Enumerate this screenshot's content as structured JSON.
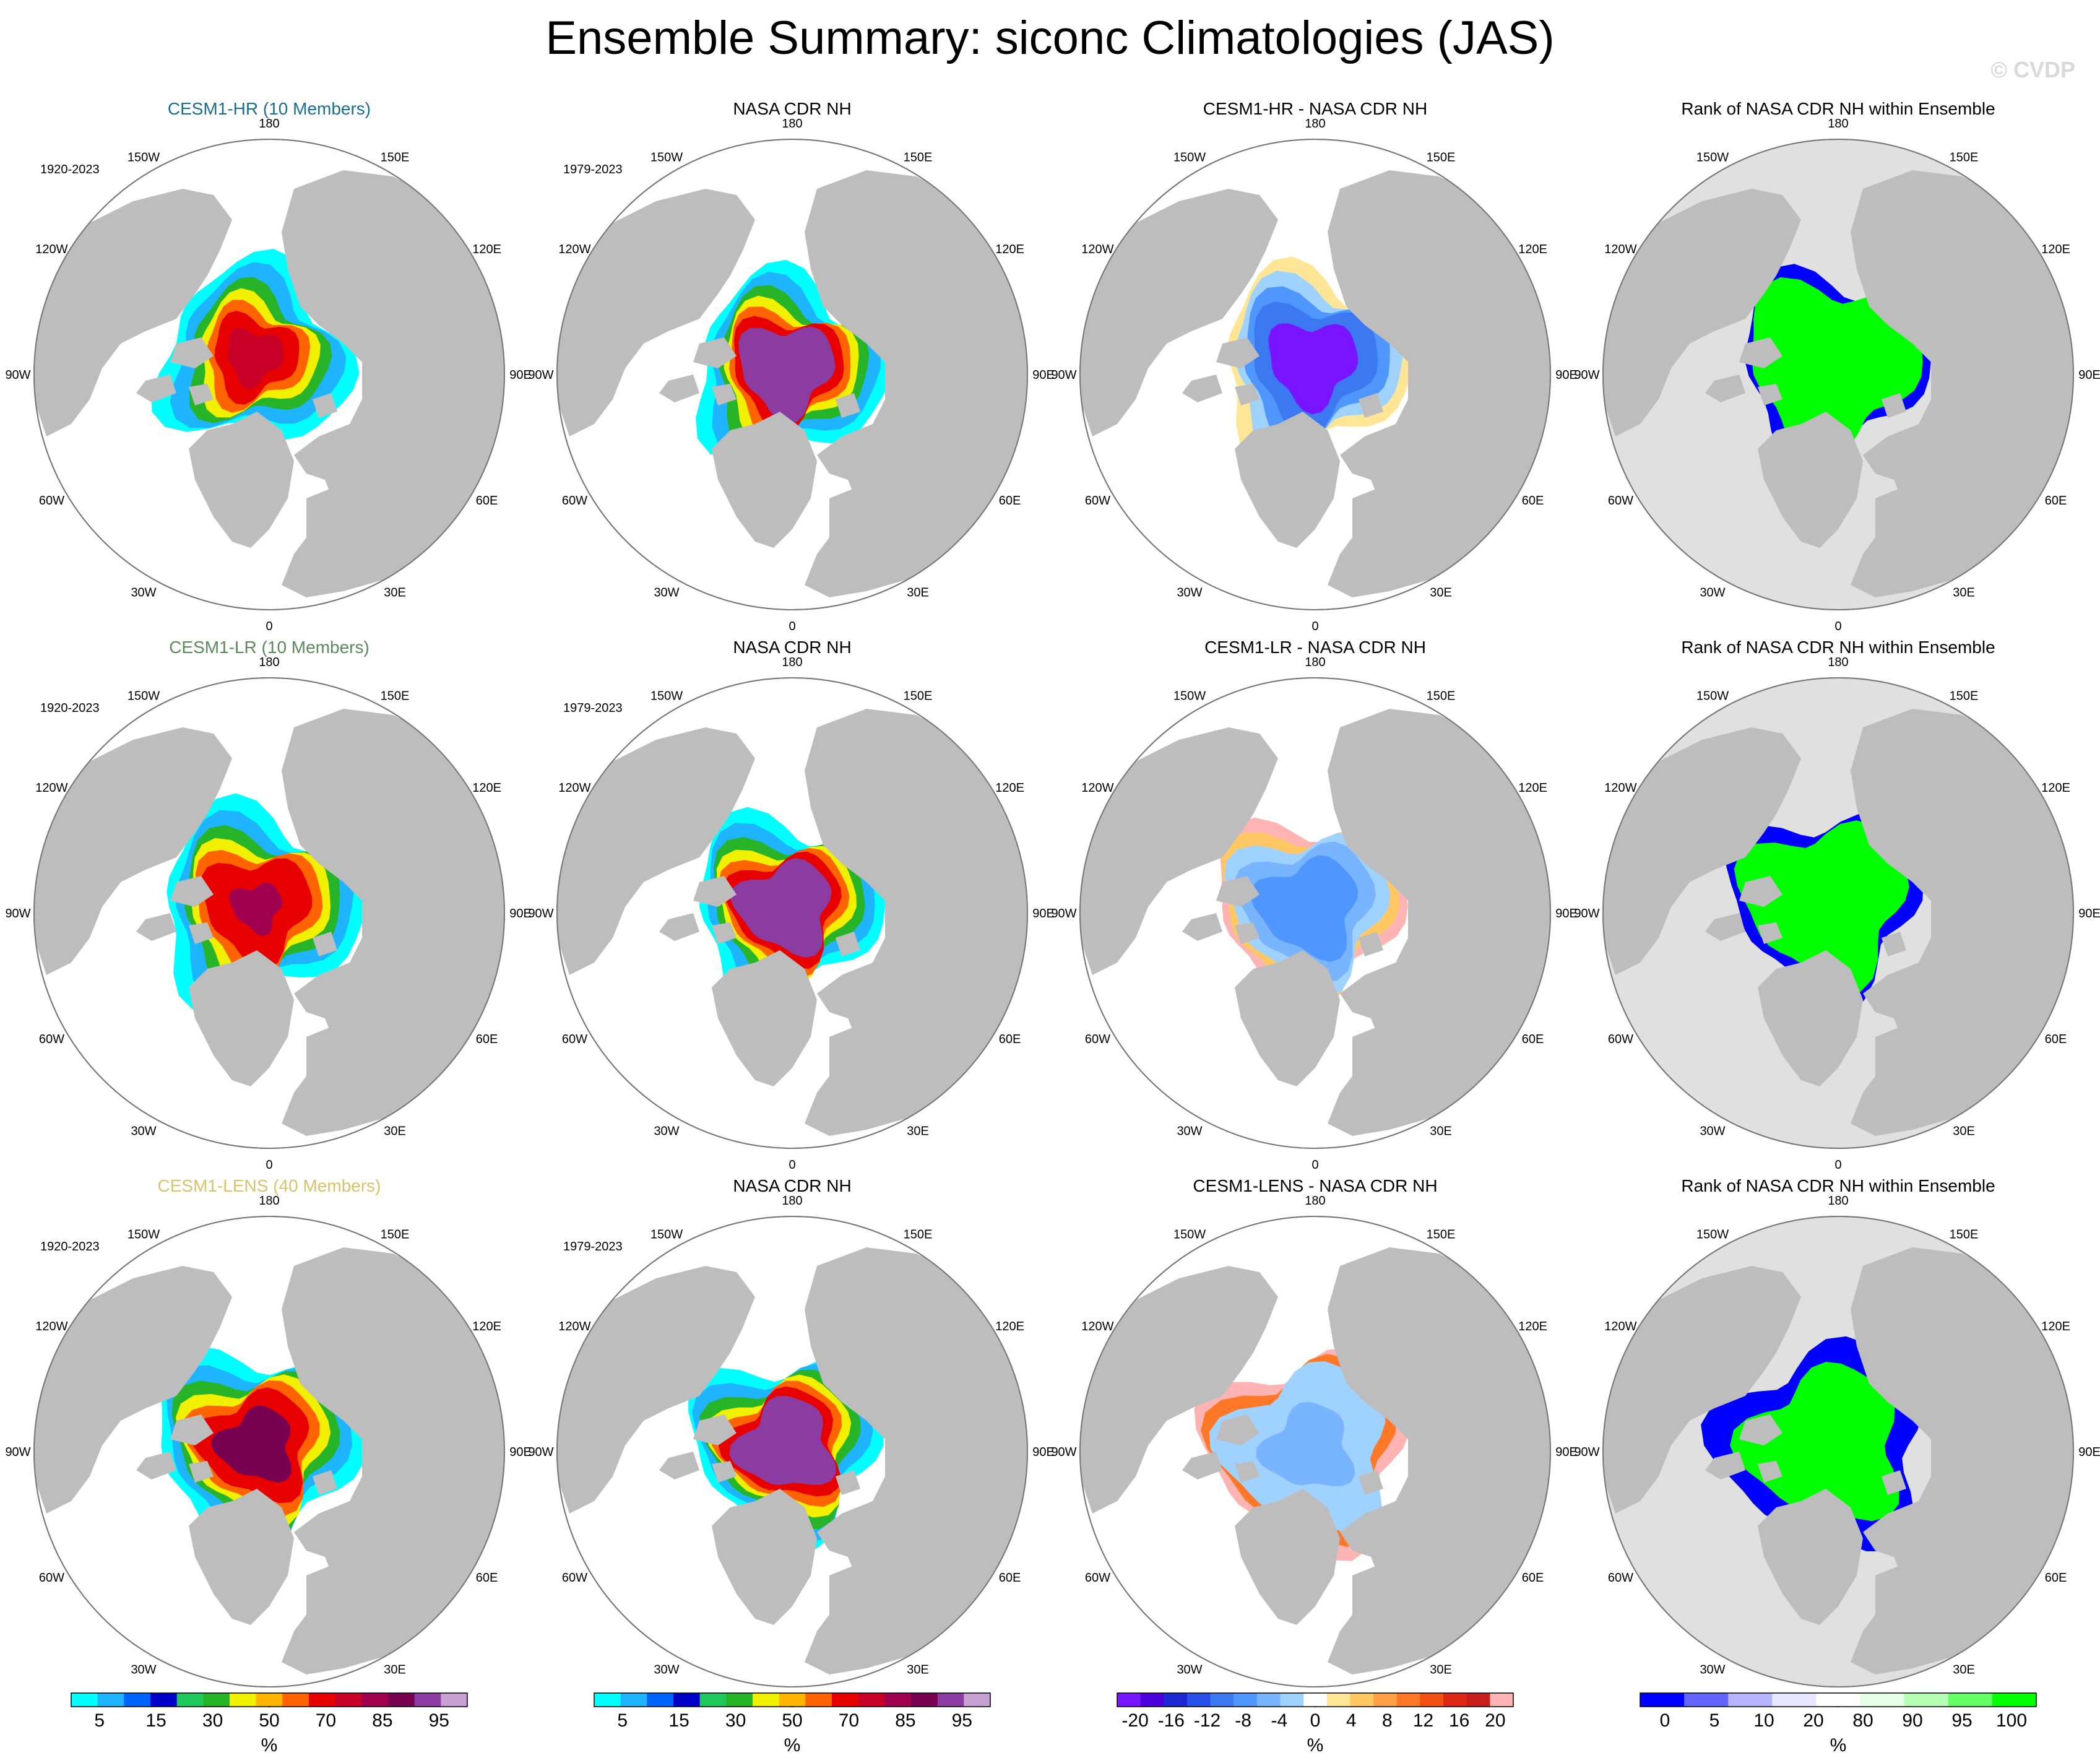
{
  "title": "Ensemble Summary: siconc Climatologies (JAS)",
  "watermark": "© CVDP",
  "label_color_hr": "#1a6e8e",
  "label_color_lr": "#5a8a5a",
  "label_color_lens": "#d8c36a",
  "land_color": "#bdbdbd",
  "ocean_color": "#ffffff",
  "lon_labels": [
    "180",
    "150E",
    "120E",
    "90E",
    "60E",
    "30E",
    "0",
    "30W",
    "60W",
    "90W",
    "120W",
    "150W"
  ],
  "rows": [
    {
      "panels": [
        {
          "title": "CESM1-HR (10 Members)",
          "title_color": "#1a6e8e",
          "years": "1920-2023",
          "kind": "clim",
          "fill": "hr"
        },
        {
          "title": "NASA CDR NH",
          "title_color": "#000000",
          "years": "1979-2023",
          "kind": "clim",
          "fill": "obs"
        },
        {
          "title": "CESM1-HR - NASA CDR NH",
          "title_color": "#000000",
          "years": "",
          "kind": "diff",
          "fill": "diff_hr"
        },
        {
          "title": "Rank of NASA CDR NH within Ensemble",
          "title_color": "#000000",
          "years": "",
          "kind": "rank",
          "fill": "rank_hr"
        }
      ]
    },
    {
      "panels": [
        {
          "title": "CESM1-LR (10 Members)",
          "title_color": "#5a8a5a",
          "years": "1920-2023",
          "kind": "clim",
          "fill": "lr"
        },
        {
          "title": "NASA CDR NH",
          "title_color": "#000000",
          "years": "1979-2023",
          "kind": "clim",
          "fill": "obs"
        },
        {
          "title": "CESM1-LR - NASA CDR NH",
          "title_color": "#000000",
          "years": "",
          "kind": "diff",
          "fill": "diff_lr"
        },
        {
          "title": "Rank of NASA CDR NH within Ensemble",
          "title_color": "#000000",
          "years": "",
          "kind": "rank",
          "fill": "rank_lr"
        }
      ]
    },
    {
      "panels": [
        {
          "title": "CESM1-LENS (40 Members)",
          "title_color": "#d8c36a",
          "years": "1920-2023",
          "kind": "clim",
          "fill": "lens"
        },
        {
          "title": "NASA CDR NH",
          "title_color": "#000000",
          "years": "1979-2023",
          "kind": "clim",
          "fill": "obs"
        },
        {
          "title": "CESM1-LENS - NASA CDR NH",
          "title_color": "#000000",
          "years": "",
          "kind": "diff",
          "fill": "diff_lens"
        },
        {
          "title": "Rank of NASA CDR NH within Ensemble",
          "title_color": "#000000",
          "years": "",
          "kind": "rank",
          "fill": "rank_lens"
        }
      ]
    }
  ],
  "colorbars": [
    {
      "kind": "clim",
      "unit": "%",
      "colors": [
        "#00ffff",
        "#1eb4ff",
        "#0064ff",
        "#0000c8",
        "#1ec85a",
        "#28b428",
        "#f0f000",
        "#ffb400",
        "#ff6400",
        "#e60000",
        "#c80028",
        "#a00050",
        "#780050",
        "#8c3ca0",
        "#c8a0d2"
      ],
      "labels": [
        "5",
        "15",
        "30",
        "50",
        "70",
        "85",
        "95"
      ]
    },
    {
      "kind": "clim",
      "unit": "%",
      "colors": [
        "#00ffff",
        "#1eb4ff",
        "#0064ff",
        "#0000c8",
        "#1ec85a",
        "#28b428",
        "#f0f000",
        "#ffb400",
        "#ff6400",
        "#e60000",
        "#c80028",
        "#a00050",
        "#780050",
        "#8c3ca0",
        "#c8a0d2"
      ],
      "labels": [
        "5",
        "15",
        "30",
        "50",
        "70",
        "85",
        "95"
      ]
    },
    {
      "kind": "diff",
      "unit": "%",
      "colors": [
        "#7814ff",
        "#4b00dc",
        "#1e28d2",
        "#2850e6",
        "#3c78f0",
        "#5096ff",
        "#78b4ff",
        "#a0d2ff",
        "#ffffff",
        "#ffe696",
        "#ffc864",
        "#ffa046",
        "#ff7828",
        "#f05014",
        "#dc2814",
        "#c81e1e",
        "#ffb4b4"
      ],
      "labels": [
        "-20",
        "-16",
        "-12",
        "-8",
        "-4",
        "0",
        "4",
        "8",
        "12",
        "16",
        "20"
      ]
    },
    {
      "kind": "rank",
      "unit": "%",
      "colors": [
        "#0000ff",
        "#6464ff",
        "#b4b4ff",
        "#e6e6ff",
        "#ffffff",
        "#e6ffe6",
        "#b4ffb4",
        "#64ff64",
        "#00ff00"
      ],
      "labels": [
        "0",
        "5",
        "10",
        "20",
        "80",
        "90",
        "95",
        "100"
      ]
    }
  ]
}
